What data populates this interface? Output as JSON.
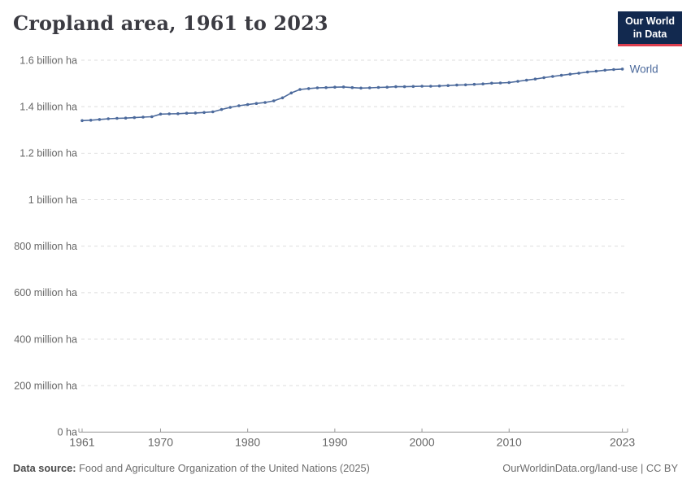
{
  "header": {
    "title": "Cropland area, 1961 to 2023"
  },
  "logo": {
    "line1": "Our World",
    "line2": "in Data",
    "bg_color": "#12294f",
    "accent_color": "#dc3e4e"
  },
  "chart_data": {
    "type": "line",
    "title": "Cropland area, 1961 to 2023",
    "xlabel": "",
    "ylabel": "",
    "unit": "ha",
    "grid": "dashed-horizontal",
    "legend_position": "end-of-line",
    "xlim": [
      1961,
      2023
    ],
    "ylim_billion_ha": [
      0,
      1.6
    ],
    "x_ticks": [
      1961,
      1970,
      1980,
      1990,
      2000,
      2010,
      2023
    ],
    "y_ticks": [
      {
        "value": 0.0,
        "label": "0 ha"
      },
      {
        "value": 0.2,
        "label": "200 million ha"
      },
      {
        "value": 0.4,
        "label": "400 million ha"
      },
      {
        "value": 0.6,
        "label": "600 million ha"
      },
      {
        "value": 0.8,
        "label": "800 million ha"
      },
      {
        "value": 1.0,
        "label": "1 billion ha"
      },
      {
        "value": 1.2,
        "label": "1.2 billion ha"
      },
      {
        "value": 1.4,
        "label": "1.4 billion ha"
      },
      {
        "value": 1.6,
        "label": "1.6 billion ha"
      }
    ],
    "series": [
      {
        "name": "World",
        "color": "#4c6a9c",
        "x": [
          1961,
          1962,
          1963,
          1964,
          1965,
          1966,
          1967,
          1968,
          1969,
          1970,
          1971,
          1972,
          1973,
          1974,
          1975,
          1976,
          1977,
          1978,
          1979,
          1980,
          1981,
          1982,
          1983,
          1984,
          1985,
          1986,
          1987,
          1988,
          1989,
          1990,
          1991,
          1992,
          1993,
          1994,
          1995,
          1996,
          1997,
          1998,
          1999,
          2000,
          2001,
          2002,
          2003,
          2004,
          2005,
          2006,
          2007,
          2008,
          2009,
          2010,
          2011,
          2012,
          2013,
          2014,
          2015,
          2016,
          2017,
          2018,
          2019,
          2020,
          2021,
          2022,
          2023
        ],
        "values_billion_ha": [
          1.34,
          1.342,
          1.345,
          1.348,
          1.35,
          1.351,
          1.353,
          1.355,
          1.357,
          1.368,
          1.369,
          1.37,
          1.372,
          1.373,
          1.375,
          1.378,
          1.388,
          1.397,
          1.404,
          1.409,
          1.414,
          1.418,
          1.425,
          1.438,
          1.459,
          1.474,
          1.478,
          1.481,
          1.482,
          1.484,
          1.485,
          1.482,
          1.48,
          1.481,
          1.483,
          1.484,
          1.486,
          1.486,
          1.487,
          1.488,
          1.488,
          1.489,
          1.491,
          1.493,
          1.494,
          1.496,
          1.498,
          1.501,
          1.502,
          1.504,
          1.509,
          1.514,
          1.519,
          1.525,
          1.53,
          1.535,
          1.54,
          1.544,
          1.549,
          1.553,
          1.557,
          1.56,
          1.562
        ]
      }
    ]
  },
  "footer": {
    "datasource_label": "Data source:",
    "datasource_text": " Food and Agriculture Organization of the United Nations (2025)",
    "link_text": "OurWorldinData.org/land-use | CC BY"
  }
}
